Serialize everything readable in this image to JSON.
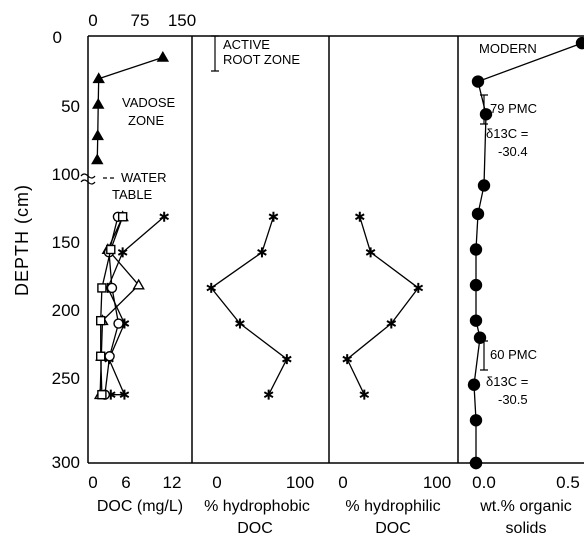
{
  "chart_data": {
    "type": "line",
    "ylabel": "DEPTH (cm)",
    "y_ticks": [
      "0",
      "50",
      "100",
      "150",
      "200",
      "250",
      "300"
    ],
    "ylim": [
      0,
      300
    ],
    "y_reversed": true,
    "panels": [
      {
        "id": "doc",
        "xlabel": "DOC (mg/L)",
        "x_ticks_bottom": [
          "0",
          "6",
          "12"
        ],
        "xlim_bottom": [
          0,
          14.5
        ],
        "x_ticks_top": [
          "0",
          "75",
          "150"
        ],
        "xlim_top": [
          0,
          181
        ],
        "series": [
          {
            "marker": "triangle-filled",
            "axis": "top",
            "x": [
              147,
              12,
              11,
              10,
              9
            ],
            "y": [
              15,
              30,
              48,
              70,
              87
            ]
          },
          {
            "marker": "asterisk",
            "axis": "bottom",
            "x": [
              12.0,
              5.0,
              2.5,
              5.3,
              2.7,
              5.3,
              3.0
            ],
            "y": [
              127,
              152,
              177,
              202,
              227,
              252,
              252
            ]
          },
          {
            "marker": "triangle-open",
            "axis": "bottom",
            "x": [
              5.0,
              2.5,
              7.7,
              1.6,
              1.4,
              1.2
            ],
            "y": [
              127,
              150,
              175,
              200,
              225,
              252
            ]
          },
          {
            "marker": "circle-open",
            "axis": "bottom",
            "x": [
              4.2,
              2.7,
              3.2,
              4.3,
              2.8,
              2.0
            ],
            "y": [
              127,
              152,
              177,
              202,
              225,
              252
            ]
          },
          {
            "marker": "square-open",
            "axis": "bottom",
            "x": [
              5.0,
              3.0,
              1.5,
              1.3,
              1.3,
              1.5
            ],
            "y": [
              127,
              150,
              177,
              200,
              225,
              252
            ]
          }
        ],
        "annotations": [
          "VADOSE",
          "ZONE",
          "WATER",
          "TABLE"
        ]
      },
      {
        "id": "hydrophobic",
        "xlabel_line1": "% hydrophobic",
        "xlabel_line2": "DOC",
        "x_ticks": [
          "0",
          "100"
        ],
        "xlim": [
          0,
          140
        ],
        "series": [
          {
            "marker": "asterisk",
            "x": [
              83,
              71,
              18,
              48,
              97,
              78
            ],
            "y": [
              127,
              152,
              177,
              202,
              227,
              252
            ]
          }
        ],
        "annotations": [
          "ACTIVE",
          "ROOT ZONE"
        ]
      },
      {
        "id": "hydrophilic",
        "xlabel_line1": "% hydrophilic",
        "xlabel_line2": "DOC",
        "x_ticks": [
          "0",
          "100"
        ],
        "xlim": [
          -15,
          125
        ],
        "series": [
          {
            "marker": "asterisk",
            "x": [
              17,
              29,
              82,
              52,
              3,
              22
            ],
            "y": [
              127,
              152,
              177,
              202,
              227,
              252
            ]
          }
        ]
      },
      {
        "id": "organic",
        "xlabel_line1": "wt.% organic",
        "xlabel_line2": "solids",
        "x_ticks": [
          "0.0",
          "0.5"
        ],
        "xlim": [
          -0.06,
          0.56
        ],
        "series": [
          {
            "marker": "circle-filled",
            "x": [
              0.55,
              0.03,
              0.07,
              0.06,
              0.03,
              0.02,
              0.02,
              0.02,
              0.04,
              0.01,
              0.02,
              0.02,
              0.02
            ],
            "y": [
              5,
              32,
              55,
              105,
              125,
              150,
              175,
              200,
              212,
              245,
              270,
              300,
              300
            ]
          }
        ],
        "annotations": [
          {
            "label": "MODERN"
          },
          {
            "label": "79 PMC",
            "delta_label": "δ13C =",
            "delta_value": "-30.4"
          },
          {
            "label": "60 PMC",
            "delta_label": "δ13C =",
            "delta_value": "-30.5"
          }
        ]
      }
    ]
  }
}
